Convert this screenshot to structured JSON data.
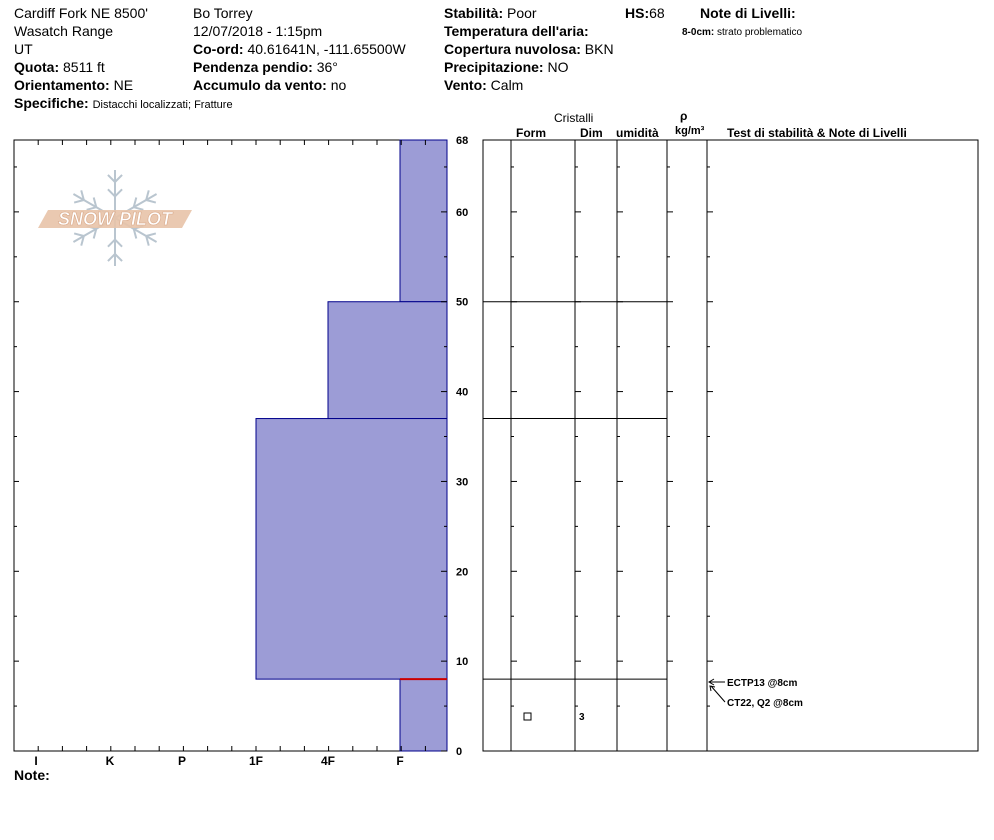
{
  "header": {
    "location": "Cardiff Fork NE 8500'",
    "range": "Wasatch Range",
    "state": "UT",
    "elevation_label": "Quota:",
    "elevation_value": "8511 ft",
    "aspect_label": "Orientamento:",
    "aspect_value": "NE",
    "specifics_label": "Specifiche:",
    "specifics_value": "Distacchi localizzati;  Fratture",
    "observer": "Bo Torrey",
    "datetime": "12/07/2018 - 1:15pm",
    "coord_label": "Co-ord:",
    "coord_value": "40.61641N, -111.65500W",
    "slope_label": "Pendenza pendio:",
    "slope_value": "36°",
    "wind_load_label": "Accumulo da vento:",
    "wind_load_value": "no",
    "stability_label": "Stabilità:",
    "stability_value": "Poor",
    "hs_label": "HS:",
    "hs_value": "68",
    "air_temp_label": "Temperatura dell'aria:",
    "cloud_label": "Copertura nuvolosa:",
    "cloud_value": "BKN",
    "precip_label": "Precipitazione:",
    "precip_value": "NO",
    "wind_label": "Vento:",
    "wind_value": "Calm",
    "layer_notes_title": "Note di Livelli:",
    "layer_note_range": "8-0cm:",
    "layer_note_text": "strato problematico"
  },
  "table": {
    "crystals_title": "Cristalli",
    "col_form": "Form",
    "col_size": "Dim",
    "col_moisture": "umidità",
    "col_density_symbol": "ρ",
    "col_density_unit": "kg/m³",
    "col_tests": "Test di stabilità & Note di Livelli",
    "layer_size_value": "3",
    "test_1": "ECTP13 @8cm",
    "test_2": "CT22, Q2 @8cm"
  },
  "notes_label": "Note:",
  "logo_text": "SNOW PILOT",
  "colors": {
    "layer_fill": "#9c9cd6",
    "layer_stroke": "#00008b",
    "weak_layer": "#cc0000",
    "logo": "#e8c3a8"
  },
  "chart_data": {
    "type": "bar",
    "title": "",
    "orientation": "horizontal-depth-profile",
    "y_axis": {
      "label": "",
      "range": [
        0,
        68
      ],
      "ticks": [
        0,
        10,
        20,
        30,
        40,
        50,
        60,
        68
      ],
      "unit": "cm"
    },
    "x_axis": {
      "label": "",
      "categories": [
        "I",
        "K",
        "P",
        "1F",
        "4F",
        "F"
      ],
      "reversed": true
    },
    "layers": [
      {
        "bottom": 50,
        "top": 68,
        "hardness": "F"
      },
      {
        "bottom": 37,
        "top": 50,
        "hardness": "4F"
      },
      {
        "bottom": 8,
        "top": 37,
        "hardness": "1F"
      },
      {
        "bottom": 0,
        "top": 8,
        "hardness": "F"
      }
    ],
    "weak_layer_depth": 8,
    "grid": false,
    "legend": "none"
  }
}
